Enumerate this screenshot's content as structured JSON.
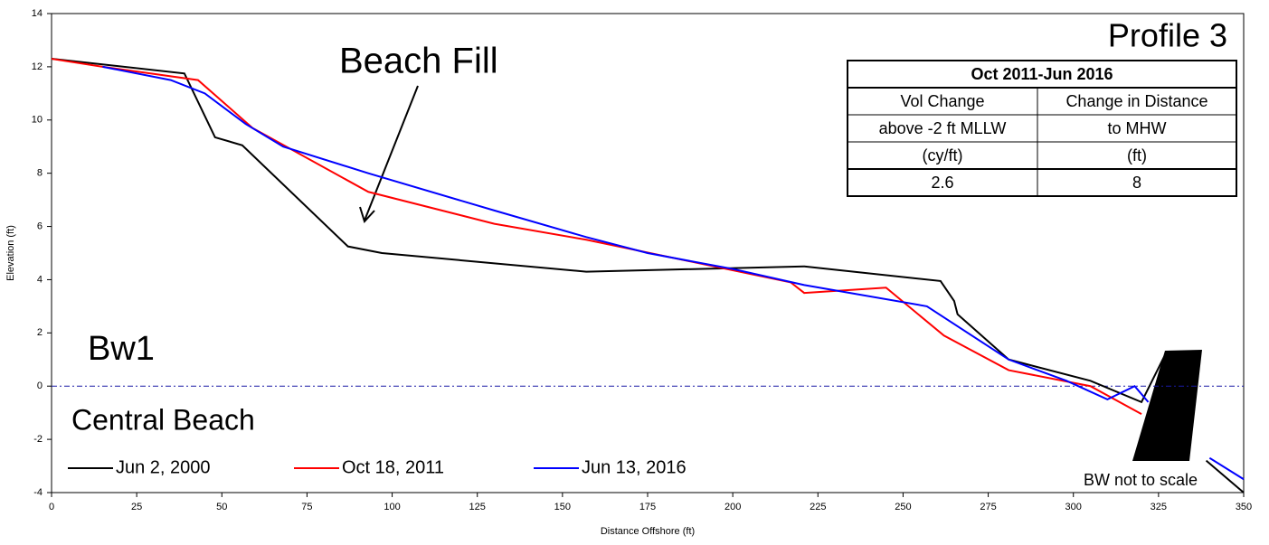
{
  "chart_data": {
    "type": "line",
    "title": "Profile 3",
    "xlabel": "Distance Offshore (ft)",
    "ylabel": "Elevation (ft)",
    "xlim": [
      0,
      350
    ],
    "ylim": [
      -4,
      14
    ],
    "xticks": [
      0,
      25,
      50,
      75,
      100,
      125,
      150,
      175,
      200,
      225,
      250,
      275,
      300,
      325,
      350
    ],
    "yticks": [
      -4,
      -2,
      0,
      2,
      4,
      6,
      8,
      10,
      12,
      14
    ],
    "reference_line": {
      "value": 0,
      "color": "#1a1aa6"
    },
    "annotations": [
      "Beach Fill",
      "Bw1",
      "Central Beach",
      "BW not to scale"
    ],
    "series": [
      {
        "name": "Jun 2, 2000",
        "color": "#000000",
        "x": [
          0,
          39,
          48,
          56,
          87,
          97,
          157,
          221,
          261,
          265,
          266,
          281,
          305,
          320,
          327,
          333,
          339,
          350
        ],
        "values": [
          12.3,
          11.75,
          9.35,
          9.05,
          5.25,
          5.0,
          4.3,
          4.5,
          3.95,
          3.2,
          2.7,
          1.0,
          0.2,
          -0.6,
          1.2,
          null,
          -2.8,
          -4.0
        ]
      },
      {
        "name": "Oct 18, 2011",
        "color": "#ff0000",
        "x": [
          0,
          15,
          43,
          59,
          93,
          130,
          157,
          217,
          221,
          245,
          262,
          281,
          305,
          320
        ],
        "values": [
          12.3,
          12.0,
          11.5,
          9.7,
          7.3,
          6.1,
          5.5,
          3.9,
          3.5,
          3.7,
          1.9,
          0.6,
          0.0,
          -1.05
        ]
      },
      {
        "name": "Jun 13, 2016",
        "color": "#0000ff",
        "x": [
          15,
          35,
          45,
          57,
          68,
          93,
          130,
          157,
          175,
          200,
          221,
          257,
          281,
          298,
          310,
          318,
          322,
          333,
          340,
          350
        ],
        "values": [
          12.0,
          11.5,
          11.0,
          9.85,
          9.0,
          8.0,
          6.6,
          5.6,
          5.0,
          4.4,
          3.8,
          3.0,
          1.0,
          0.2,
          -0.5,
          0.0,
          -0.6,
          null,
          -2.7,
          -3.5
        ]
      }
    ],
    "table": {
      "title": "Oct 2011-Jun 2016",
      "rows": [
        [
          "Vol Change",
          "Change in Distance"
        ],
        [
          "above -2 ft MLLW",
          "to MHW"
        ],
        [
          "(cy/ft)",
          "(ft)"
        ],
        [
          2.6,
          8
        ]
      ]
    }
  }
}
